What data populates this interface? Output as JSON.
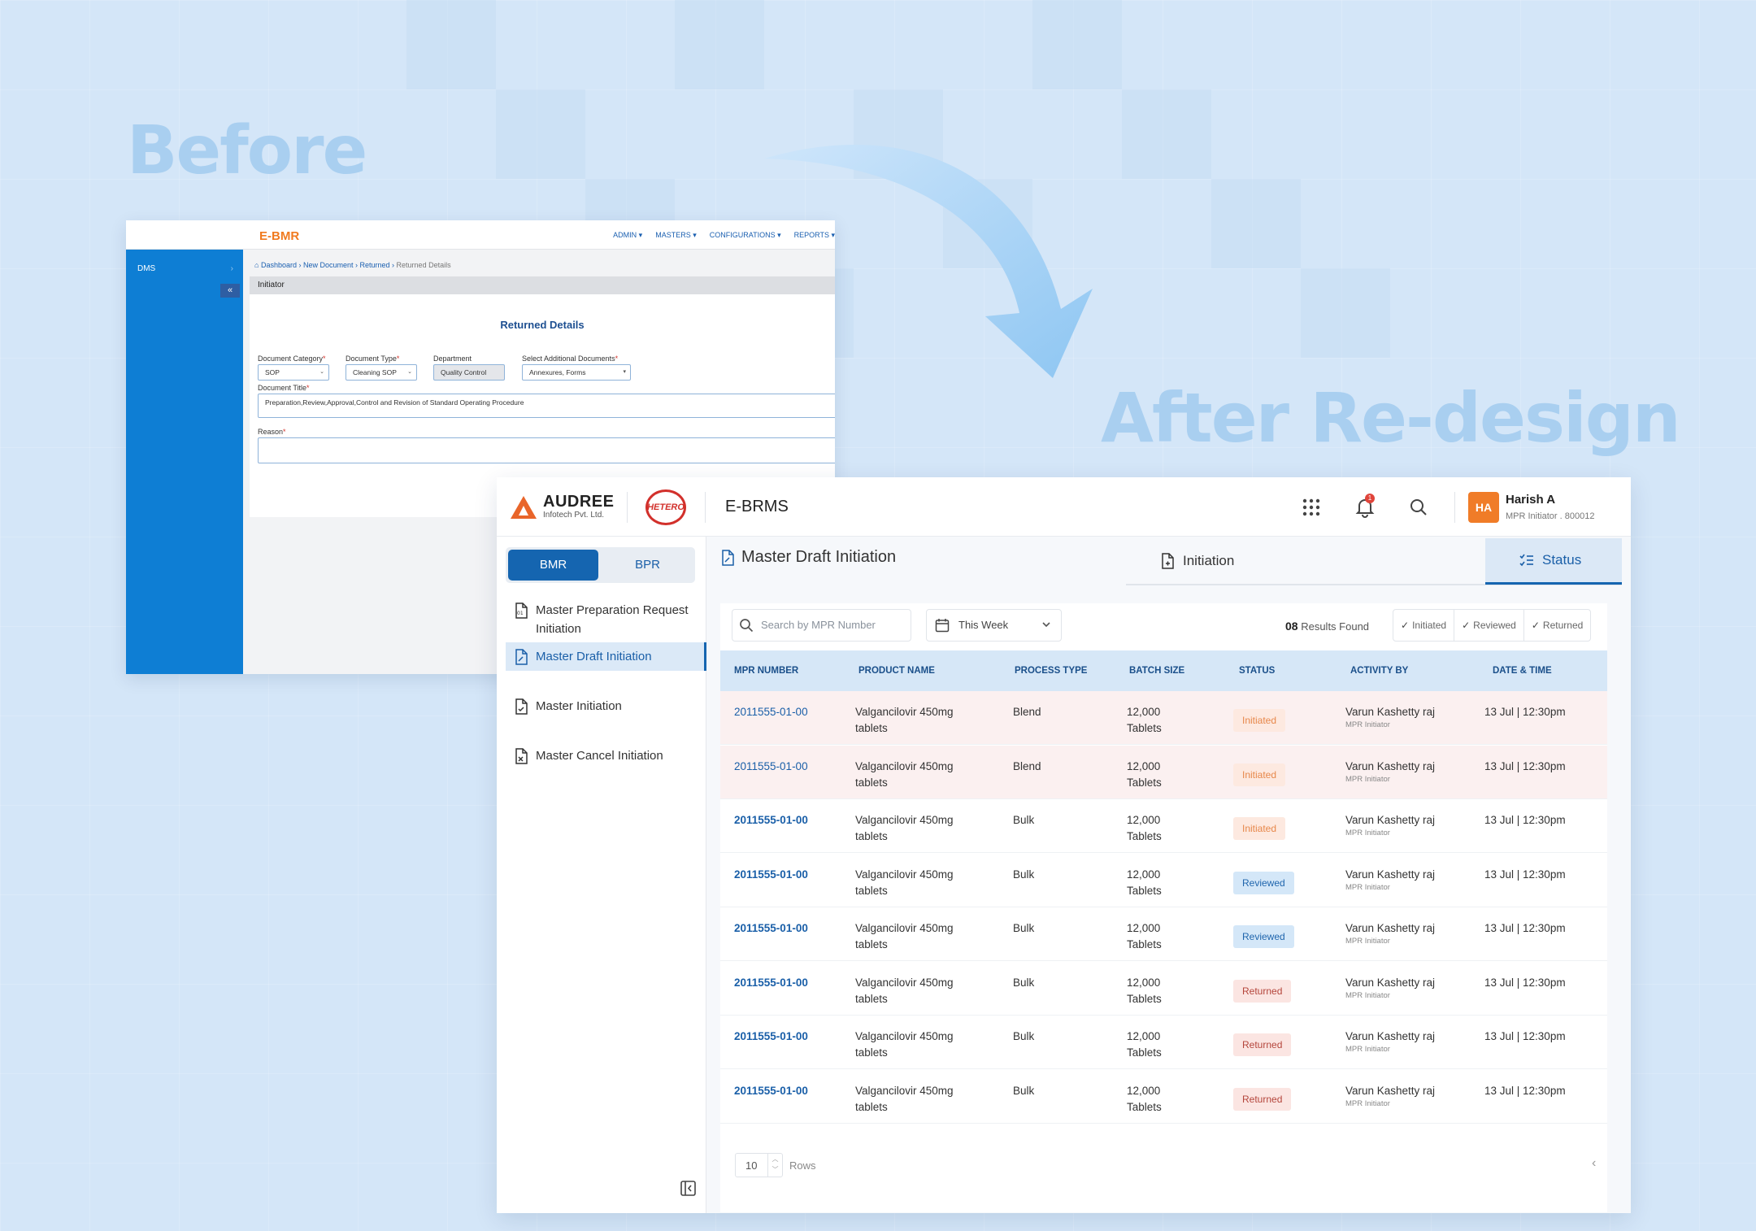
{
  "labels": {
    "before": "Before",
    "after": "After Re-design"
  },
  "before": {
    "logo": "E-BMR",
    "nav": [
      "ADMIN",
      "MASTERS",
      "CONFIGURATIONS",
      "REPORTS"
    ],
    "sidebar_item": "DMS",
    "breadcrumb": [
      "Dashboard",
      "New Document",
      "Returned",
      "Returned Details"
    ],
    "band": "Initiator",
    "form_title": "Returned Details",
    "fields": {
      "doc_category": {
        "label": "Document Category",
        "value": "SOP"
      },
      "doc_type": {
        "label": "Document Type",
        "value": "Cleaning SOP"
      },
      "department": {
        "label": "Department",
        "value": "Quality Control"
      },
      "additional": {
        "label": "Select Additional Documents",
        "value": "Annexures, Forms"
      },
      "title": {
        "label": "Document Title",
        "value": "Preparation,Review,Approval,Control and Revision of Standard Operating Procedure"
      },
      "reason": {
        "label": "Reason",
        "value": ""
      }
    }
  },
  "after": {
    "brand": {
      "name": "AUDREE",
      "sub": "Infotech Pvt. Ltd."
    },
    "partner": "HETERO",
    "app_name": "E-BRMS",
    "notifications": "1",
    "user": {
      "initials": "HA",
      "name": "Harish A",
      "role": "MPR Initiator . 800012"
    },
    "toggle": {
      "options": [
        "BMR",
        "BPR"
      ],
      "selected": "BMR"
    },
    "nav": [
      {
        "label": "Master Preparation Request Initiation"
      },
      {
        "label": "Master Draft Initiation",
        "active": true
      },
      {
        "label": "Master Initiation"
      },
      {
        "label": "Master Cancel Initiation"
      }
    ],
    "page_title": "Master Draft Initiation",
    "tabs": {
      "initiation": "Initiation",
      "status": "Status",
      "active": "Status"
    },
    "search_placeholder": "Search by MPR Number",
    "date_filter": "This Week",
    "results": {
      "count": "08",
      "label": "Results Found"
    },
    "filters": [
      "Initiated",
      "Reviewed",
      "Returned"
    ],
    "columns": [
      "MPR NUMBER",
      "PRODUCT NAME",
      "PROCESS TYPE",
      "BATCH SIZE",
      "STATUS",
      "ACTIVITY BY",
      "DATE & TIME"
    ],
    "rows": [
      {
        "mpr": "2011555-01-00",
        "product": "Valgancilovir 450mg tablets",
        "process": "Blend",
        "batch": "12,000 Tablets",
        "status": "Initiated",
        "by": "Varun Kashetty raj",
        "role": "MPR Initiator",
        "date": "13 Jul | 12:30pm"
      },
      {
        "mpr": "2011555-01-00",
        "product": "Valgancilovir 450mg tablets",
        "process": "Blend",
        "batch": "12,000 Tablets",
        "status": "Initiated",
        "by": "Varun Kashetty raj",
        "role": "MPR Initiator",
        "date": "13 Jul | 12:30pm"
      },
      {
        "mpr": "2011555-01-00",
        "product": "Valgancilovir 450mg tablets",
        "process": "Bulk",
        "batch": "12,000 Tablets",
        "status": "Initiated",
        "by": "Varun Kashetty raj",
        "role": "MPR Initiator",
        "date": "13 Jul | 12:30pm"
      },
      {
        "mpr": "2011555-01-00",
        "product": "Valgancilovir 450mg tablets",
        "process": "Bulk",
        "batch": "12,000 Tablets",
        "status": "Reviewed",
        "by": "Varun Kashetty raj",
        "role": "MPR Initiator",
        "date": "13 Jul | 12:30pm"
      },
      {
        "mpr": "2011555-01-00",
        "product": "Valgancilovir 450mg tablets",
        "process": "Bulk",
        "batch": "12,000 Tablets",
        "status": "Reviewed",
        "by": "Varun Kashetty raj",
        "role": "MPR Initiator",
        "date": "13 Jul | 12:30pm"
      },
      {
        "mpr": "2011555-01-00",
        "product": "Valgancilovir 450mg tablets",
        "process": "Bulk",
        "batch": "12,000 Tablets",
        "status": "Returned",
        "by": "Varun Kashetty raj",
        "role": "MPR Initiator",
        "date": "13 Jul | 12:30pm"
      },
      {
        "mpr": "2011555-01-00",
        "product": "Valgancilovir 450mg tablets",
        "process": "Bulk",
        "batch": "12,000 Tablets",
        "status": "Returned",
        "by": "Varun Kashetty raj",
        "role": "MPR Initiator",
        "date": "13 Jul | 12:30pm"
      },
      {
        "mpr": "2011555-01-00",
        "product": "Valgancilovir 450mg tablets",
        "process": "Bulk",
        "batch": "12,000 Tablets",
        "status": "Returned",
        "by": "Varun Kashetty raj",
        "role": "MPR Initiator",
        "date": "13 Jul | 12:30pm"
      }
    ],
    "pagination": {
      "rows_value": "10",
      "rows_label": "Rows"
    },
    "colors": {
      "primary": "#1565b0",
      "accent": "#f07c28",
      "header_bg": "#d6e7f7"
    }
  }
}
